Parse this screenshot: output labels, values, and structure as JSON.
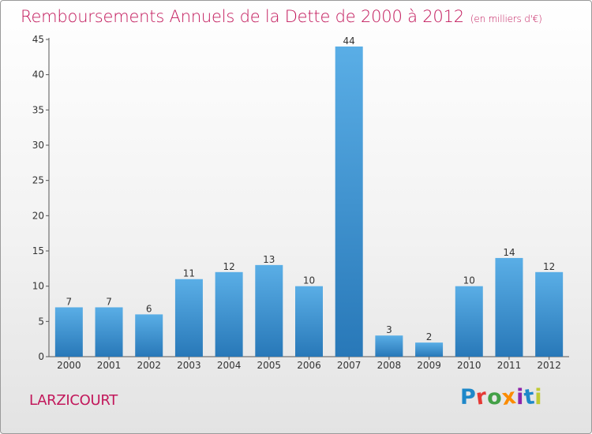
{
  "title": "Remboursements Annuels de la Dette de 2000 à 2012",
  "subtitle": "(en milliers d'€)",
  "commune": "LARZICOURT",
  "logo": {
    "letters": [
      {
        "char": "P",
        "color": "#1e88c9"
      },
      {
        "char": "r",
        "color": "#e53935"
      },
      {
        "char": "o",
        "color": "#43a047"
      },
      {
        "char": "x",
        "color": "#fb8c00"
      },
      {
        "char": "i",
        "color": "#8e24aa"
      },
      {
        "char": "t",
        "color": "#1e88c9"
      },
      {
        "char": "i",
        "color": "#c0ca33"
      }
    ]
  },
  "colors": {
    "bar_light": "#5aaee6",
    "bar_dark": "#2878b8",
    "accent": "#c2185b",
    "axis": "#555555"
  },
  "chart_data": {
    "type": "bar",
    "categories": [
      "2000",
      "2001",
      "2002",
      "2003",
      "2004",
      "2005",
      "2006",
      "2007",
      "2008",
      "2009",
      "2010",
      "2011",
      "2012"
    ],
    "values": [
      7,
      7,
      6,
      11,
      12,
      13,
      10,
      44,
      3,
      2,
      10,
      14,
      12
    ],
    "ylim": [
      0,
      45
    ],
    "yticks": [
      0,
      5,
      10,
      15,
      20,
      25,
      30,
      35,
      40,
      45
    ],
    "grid": false,
    "legend": "none"
  }
}
